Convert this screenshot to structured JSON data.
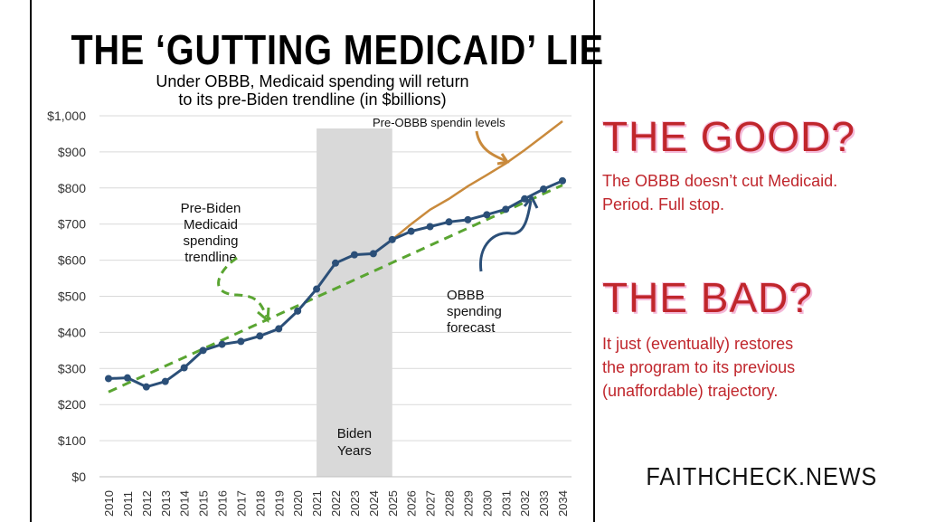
{
  "chart_data": {
    "type": "line",
    "title": "THE ‘GUTTING MEDICAID’ LIE",
    "subtitle": [
      "Under OBBB, Medicaid spending will return",
      "to its pre-Biden trendline (in $billions)"
    ],
    "x": [
      2010,
      2011,
      2012,
      2013,
      2014,
      2015,
      2016,
      2017,
      2018,
      2019,
      2020,
      2021,
      2022,
      2023,
      2024,
      2025,
      2026,
      2027,
      2028,
      2029,
      2030,
      2031,
      2032,
      2033,
      2034
    ],
    "x_labels": [
      "2010",
      "2011",
      "2012",
      "2013",
      "2014",
      "2015",
      "2016",
      "2017",
      "2018",
      "2019",
      "2020",
      "2021",
      "2022",
      "2023",
      "2024",
      "2025",
      "2026",
      "2027",
      "2028",
      "2029",
      "2030",
      "2031",
      "2032",
      "2033",
      "2034"
    ],
    "ylim": [
      0,
      1000
    ],
    "y_ticks": [
      0,
      100,
      200,
      300,
      400,
      500,
      600,
      700,
      800,
      900,
      1000
    ],
    "y_tick_labels": [
      "$0",
      "$100",
      "$200",
      "$300",
      "$400",
      "$500",
      "$600",
      "$700",
      "$800",
      "$900",
      "$1,000"
    ],
    "grid": true,
    "series": [
      {
        "name": "OBBB spending forecast",
        "color": "#2b4f78",
        "x": [
          2010,
          2011,
          2012,
          2013,
          2014,
          2015,
          2016,
          2017,
          2018,
          2019,
          2020,
          2021,
          2022,
          2023,
          2024,
          2025,
          2026,
          2027,
          2028,
          2029,
          2030,
          2031,
          2032,
          2033,
          2034
        ],
        "values": [
          272,
          274,
          249,
          264,
          302,
          350,
          367,
          375,
          390,
          410,
          459,
          520,
          592,
          615,
          618,
          657,
          680,
          693,
          706,
          712,
          726,
          741,
          770,
          797,
          820
        ]
      },
      {
        "name": "Pre-OBBB spendin levels",
        "color": "#c98a3c",
        "x": [
          2025,
          2026,
          2027,
          2028,
          2029,
          2030,
          2031,
          2032,
          2033,
          2034
        ],
        "values": [
          657,
          700,
          740,
          770,
          805,
          836,
          868,
          905,
          945,
          985
        ]
      },
      {
        "name": "Pre-Biden Medicaid spending trendline",
        "color": "#5aa532",
        "style": "dashed",
        "x": [
          2010,
          2034
        ],
        "values": [
          235,
          808
        ]
      }
    ],
    "shaded_region": {
      "x_start": 2021,
      "x_end": 2025,
      "label": [
        "Biden",
        "Years"
      ]
    },
    "annotations": {
      "pre_biden": [
        "Pre-Biden",
        "Medicaid",
        "spending",
        "trendline"
      ],
      "pre_obbb": "Pre-OBBB spendin levels",
      "obbb": [
        "OBBB",
        "spending",
        "forecast"
      ]
    }
  },
  "right": {
    "good_heading": "THE GOOD?",
    "good_text": [
      "The OBBB doesn’t cut Medicaid.",
      "Period. Full stop."
    ],
    "bad_heading": "THE BAD?",
    "bad_text": [
      "It just (eventually) restores",
      "the program to its previous",
      "(unaffordable) trajectory."
    ],
    "brand": "FAITHCHECK.NEWS",
    "accent_color": "#c0262c"
  }
}
